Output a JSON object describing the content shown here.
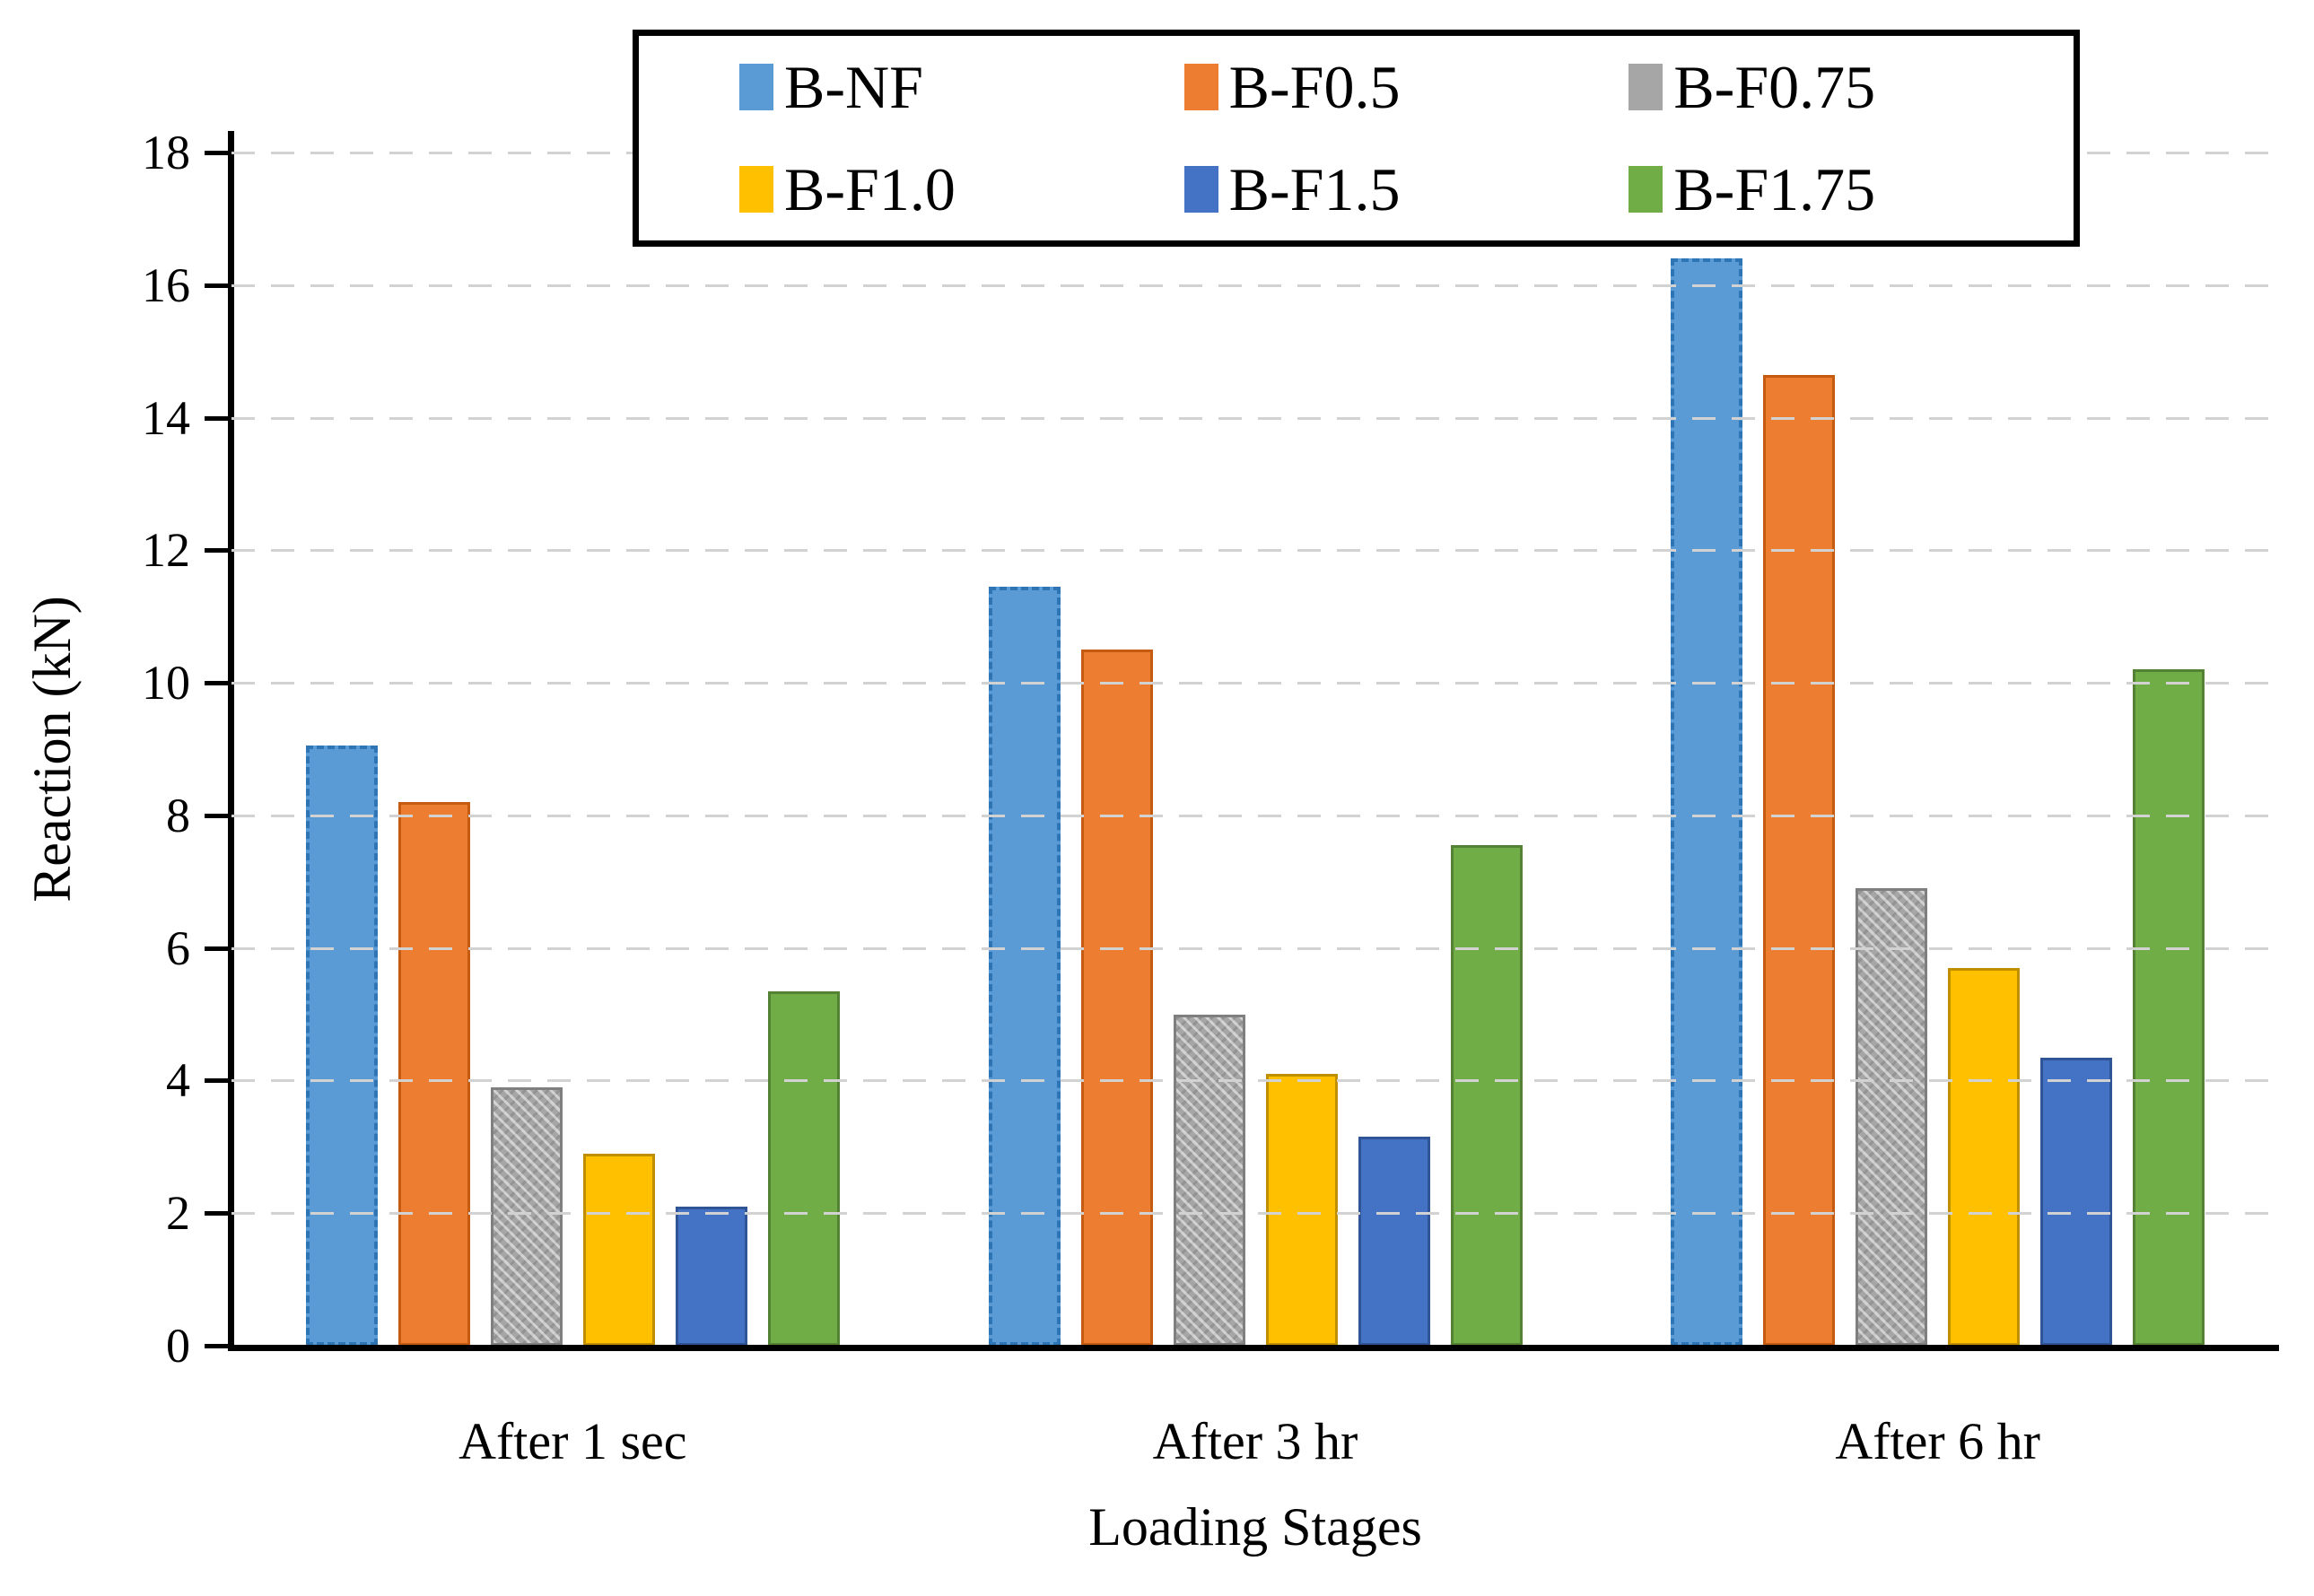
{
  "chart_data": {
    "type": "bar",
    "title": "",
    "xlabel": "Loading Stages",
    "ylabel": "Reaction (kN)",
    "categories": [
      "After 1 sec",
      "After 3 hr",
      "After 6 hr"
    ],
    "series": [
      {
        "name": "B-NF",
        "color": "#5B9BD5",
        "border": "#2E75B6",
        "pattern": "dashed-border",
        "values": [
          9.05,
          11.45,
          16.4
        ]
      },
      {
        "name": "B-F0.5",
        "color": "#ED7D31",
        "border": "#C55A11",
        "pattern": "solid",
        "values": [
          8.2,
          10.5,
          14.65
        ]
      },
      {
        "name": "B-F0.75",
        "color": "#A6A6A6",
        "border": "#7F7F7F",
        "pattern": "texture",
        "values": [
          3.9,
          5.0,
          6.9
        ]
      },
      {
        "name": "B-F1.0",
        "color": "#FFC000",
        "border": "#BF8F00",
        "pattern": "solid",
        "values": [
          2.9,
          4.1,
          5.7
        ]
      },
      {
        "name": "B-F1.5",
        "color": "#4472C4",
        "border": "#2F5597",
        "pattern": "solid",
        "values": [
          2.1,
          3.15,
          4.35
        ]
      },
      {
        "name": "B-F1.75",
        "color": "#70AD47",
        "border": "#548235",
        "pattern": "solid",
        "values": [
          5.35,
          7.55,
          10.2
        ]
      }
    ],
    "ylim": [
      0,
      18
    ],
    "yticks": [
      0,
      2,
      4,
      6,
      8,
      10,
      12,
      14,
      16,
      18
    ],
    "grid": "horizontal-dashed",
    "gridline_color": "#d2d2d2",
    "axis_color": "#000000",
    "legend_position": "top-inside-box",
    "legend_rows": 2,
    "legend_columns": 3
  }
}
